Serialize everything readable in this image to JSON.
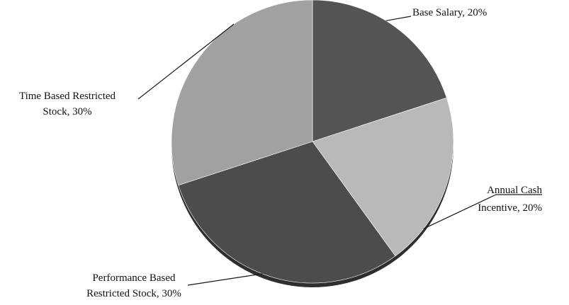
{
  "chart_data": {
    "type": "pie",
    "title": "",
    "slices": [
      {
        "name": "Base Salary",
        "value": 20,
        "label": "Base Salary, 20%",
        "color": "#545454"
      },
      {
        "name": "Annual Cash Incentive",
        "value": 20,
        "label_lines": [
          "Annual Cash",
          "Incentive, 20%"
        ],
        "color": "#b9b9b9"
      },
      {
        "name": "Performance Based Restricted Stock",
        "value": 30,
        "label_lines": [
          "Performance Based",
          "Restricted Stock, 30%"
        ],
        "color": "#4c4c4c"
      },
      {
        "name": "Time Based Restricted Stock",
        "value": 30,
        "label_lines": [
          "Time Based Restricted",
          "Stock, 30%"
        ],
        "color": "#a1a1a1"
      }
    ],
    "legend": "none",
    "start_angle": "12 o'clock, clockwise"
  }
}
